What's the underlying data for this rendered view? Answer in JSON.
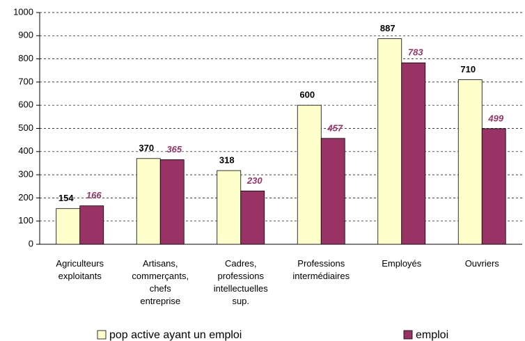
{
  "chart_data": {
    "type": "bar",
    "categories": [
      "Agriculteurs\nexploitants",
      "Artisans,\ncommerçants,\nchefs\nentreprise",
      "Cadres,\nprofessions\nintellectuelles\nsup.",
      "Professions\nintermédiaires",
      "Employés",
      "Ouvriers"
    ],
    "series": [
      {
        "name": "pop active ayant un emploi",
        "color": "#ffffcc",
        "values": [
          154,
          370,
          318,
          600,
          887,
          710
        ]
      },
      {
        "name": "emploi",
        "color": "#993366",
        "values": [
          166,
          365,
          230,
          457,
          783,
          499
        ]
      }
    ],
    "ylim": [
      0,
      1000
    ],
    "yticks": [
      0,
      100,
      200,
      300,
      400,
      500,
      600,
      700,
      800,
      900,
      1000
    ],
    "grid": true
  }
}
